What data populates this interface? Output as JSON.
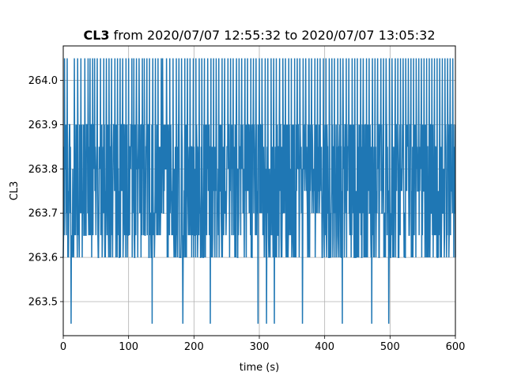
{
  "chart_data": {
    "type": "line",
    "title_bold": "CL3",
    "title_rest": " from 2020/07/07 12:55:32 to 2020/07/07 13:05:32",
    "xlabel": "time (s)",
    "ylabel": "CL3",
    "xlim": [
      0,
      600
    ],
    "ylim": [
      263.423,
      264.078
    ],
    "grid": true,
    "x_ticks": [
      0,
      100,
      200,
      300,
      400,
      500,
      600
    ],
    "x_tick_labels": [
      "0",
      "100",
      "200",
      "300",
      "400",
      "500",
      "600"
    ],
    "y_ticks": [
      263.5,
      263.6,
      263.7,
      263.8,
      263.9,
      264.0
    ],
    "y_tick_labels": [
      "263.5",
      "263.6",
      "263.7",
      "263.8",
      "263.9",
      "264.0"
    ],
    "line_color": "#1f77b4",
    "series": [
      {
        "sample_interval_s": 0.5,
        "quantization_step": 0.05,
        "levels": [
          263.45,
          263.6,
          263.75,
          263.9,
          264.05
        ],
        "dominant_range": [
          263.6,
          263.9
        ],
        "spikes_to_264.05_s": [
          2,
          6,
          12,
          17,
          22,
          27,
          33,
          38,
          41,
          45,
          48,
          52,
          57,
          62,
          66,
          70,
          74,
          79,
          83,
          87,
          91,
          96,
          100,
          105,
          108,
          112,
          116,
          121,
          124,
          128,
          132,
          137,
          141,
          145,
          150,
          152,
          158,
          163,
          168,
          173,
          177,
          181,
          186,
          190,
          194,
          199,
          203,
          208,
          212,
          216,
          221,
          226,
          230,
          234,
          238,
          243,
          247,
          252,
          256,
          260,
          265,
          269,
          273,
          278,
          282,
          287,
          291,
          295,
          300,
          304,
          309,
          313,
          318,
          322,
          326,
          331,
          336,
          340,
          345,
          349,
          354,
          358,
          362,
          367,
          371,
          376,
          380,
          385,
          389,
          393,
          398,
          402,
          407,
          411,
          415,
          420,
          424,
          428,
          433,
          437,
          442,
          446,
          450,
          455,
          459,
          464,
          468,
          473,
          477,
          481,
          486,
          490,
          494,
          499,
          503,
          508,
          512,
          516,
          520,
          524,
          528,
          532,
          536,
          540,
          544,
          548,
          552,
          556,
          560,
          564,
          568,
          572,
          576,
          580,
          584,
          588,
          592,
          596
        ],
        "dips_to_263.45_s": [
          12,
          136,
          183,
          225,
          298,
          311,
          323,
          366,
          427,
          472,
          498
        ]
      }
    ]
  }
}
